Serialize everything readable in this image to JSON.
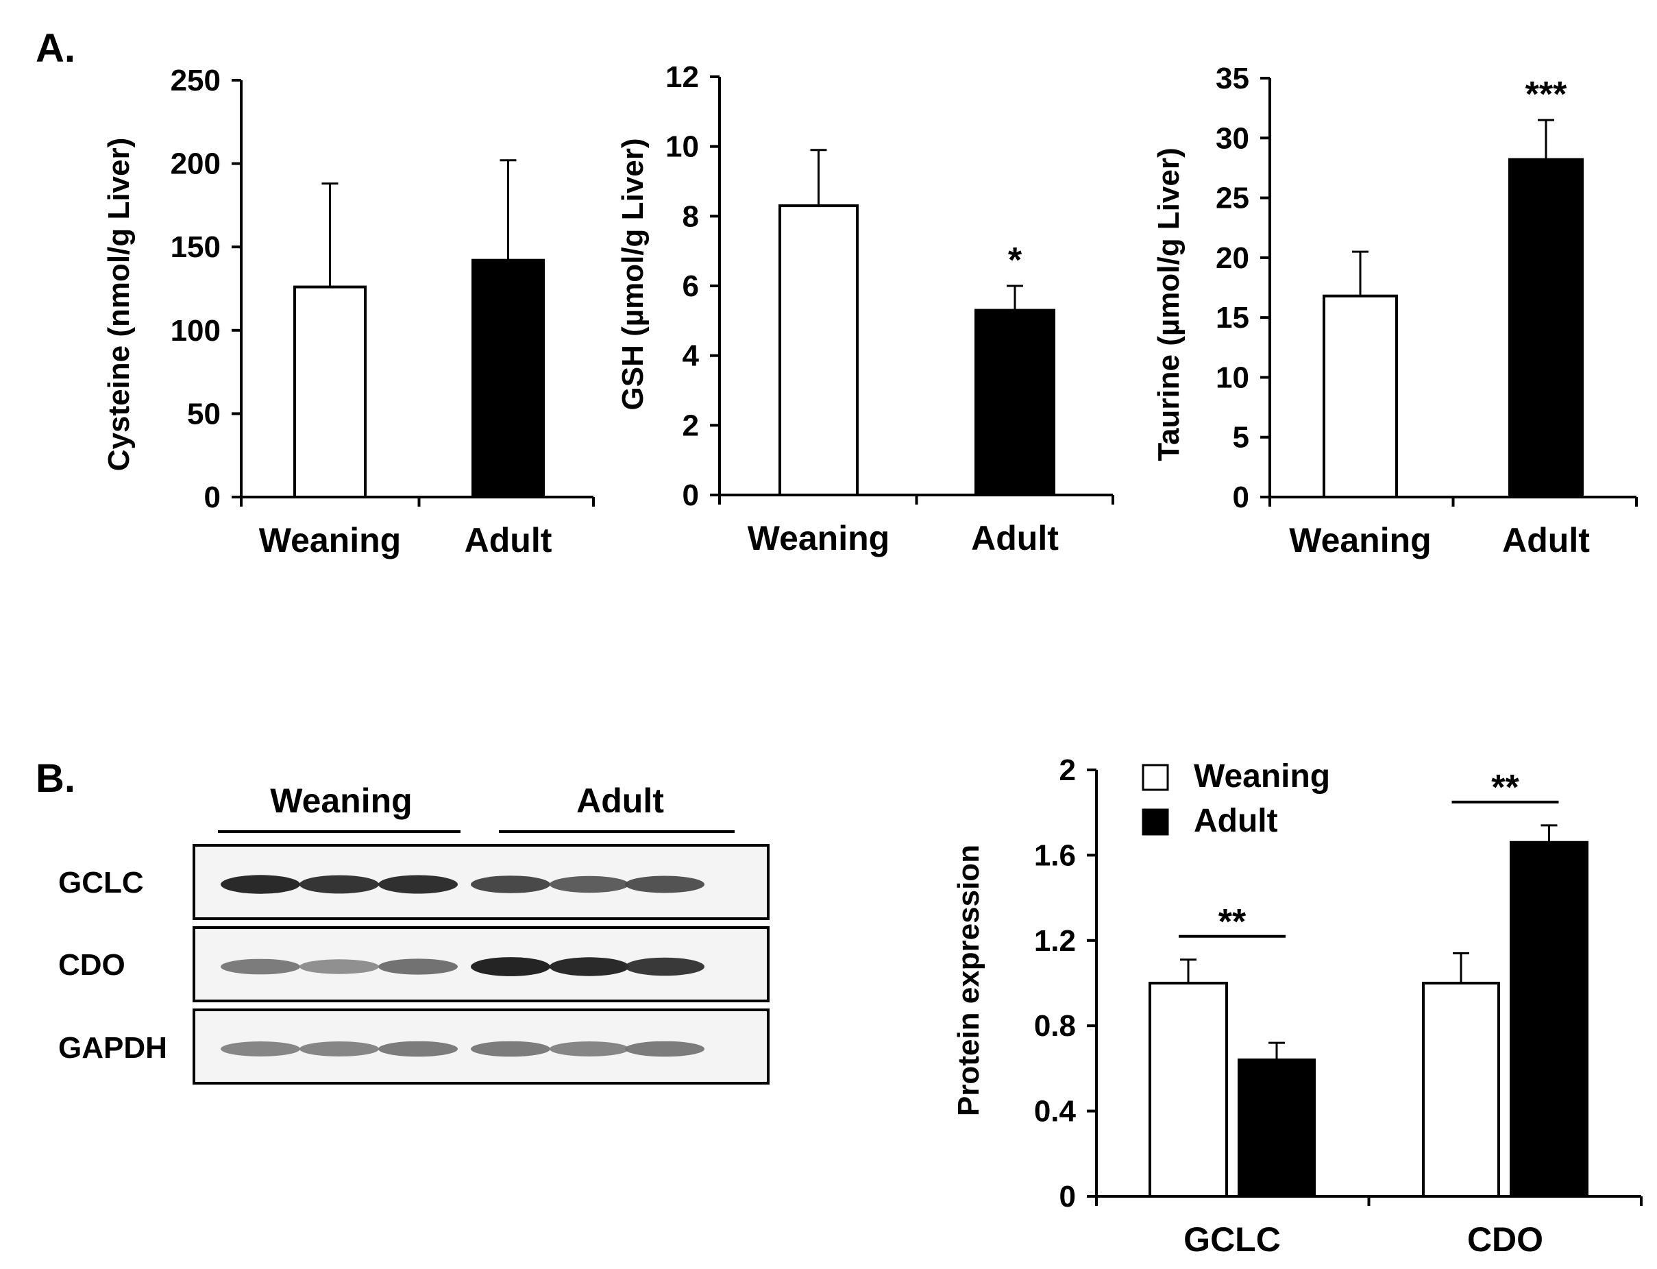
{
  "panels": {
    "a_label": "A.",
    "b_label": "B."
  },
  "chart_data": [
    {
      "id": "cysteine",
      "type": "bar",
      "title": "",
      "categories": [
        "Weaning",
        "Adult"
      ],
      "values": [
        126,
        142
      ],
      "errors": [
        62,
        60
      ],
      "colors": [
        "#ffffff",
        "#000000"
      ],
      "significance": [
        "",
        ""
      ],
      "ylabel": "Cysteine (nmol/g Liver)",
      "xlabel": "",
      "ylim": [
        0,
        250
      ],
      "yticks": [
        0,
        50,
        100,
        150,
        200,
        250
      ],
      "ytick_labels": [
        "0",
        "50",
        "100",
        "150",
        "200",
        "250"
      ],
      "grid": false
    },
    {
      "id": "gsh",
      "type": "bar",
      "title": "",
      "categories": [
        "Weaning",
        "Adult"
      ],
      "values": [
        8.3,
        5.3
      ],
      "errors": [
        1.6,
        0.7
      ],
      "colors": [
        "#ffffff",
        "#000000"
      ],
      "significance": [
        "",
        "*"
      ],
      "ylabel": "GSH (µmol/g Liver)",
      "xlabel": "",
      "ylim": [
        0,
        12
      ],
      "yticks": [
        0,
        2,
        4,
        6,
        8,
        10,
        12
      ],
      "ytick_labels": [
        "0",
        "2",
        "4",
        "6",
        "8",
        "10",
        "12"
      ],
      "grid": false
    },
    {
      "id": "taurine",
      "type": "bar",
      "title": "",
      "categories": [
        "Weaning",
        "Adult"
      ],
      "values": [
        16.8,
        28.2
      ],
      "errors": [
        3.7,
        3.3
      ],
      "colors": [
        "#ffffff",
        "#000000"
      ],
      "significance": [
        "",
        "***"
      ],
      "ylabel": "Taurine (µmol/g Liver)",
      "xlabel": "",
      "ylim": [
        0,
        35
      ],
      "yticks": [
        0,
        5,
        10,
        15,
        20,
        25,
        30,
        35
      ],
      "ytick_labels": [
        "0",
        "5",
        "10",
        "15",
        "20",
        "25",
        "30",
        "35"
      ],
      "grid": false
    },
    {
      "id": "protein",
      "type": "bar",
      "title": "",
      "categories": [
        "GCLC",
        "CDO"
      ],
      "series": [
        {
          "name": "Weaning",
          "values": [
            1.0,
            1.0
          ],
          "errors": [
            0.11,
            0.14
          ],
          "color": "#ffffff"
        },
        {
          "name": "Adult",
          "values": [
            0.64,
            1.66
          ],
          "errors": [
            0.08,
            0.08
          ],
          "color": "#000000"
        }
      ],
      "significance": [
        "**",
        "**"
      ],
      "ylabel": "Protein expression",
      "xlabel": "",
      "ylim": [
        0,
        2
      ],
      "yticks": [
        0,
        0.4,
        0.8,
        1.2,
        1.6,
        2
      ],
      "ytick_labels": [
        "0",
        "0.4",
        "0.8",
        "1.2",
        "1.6",
        "2"
      ],
      "legend": "top-left",
      "grid": false
    }
  ],
  "blot": {
    "groups": [
      "Weaning",
      "Adult"
    ],
    "rows": [
      {
        "label": "GCLC",
        "intensities": [
          0.95,
          0.9,
          0.92,
          0.8,
          0.7,
          0.75
        ]
      },
      {
        "label": "CDO",
        "intensities": [
          0.55,
          0.45,
          0.6,
          0.98,
          0.95,
          0.88
        ]
      },
      {
        "label": "GAPDH",
        "intensities": [
          0.5,
          0.5,
          0.55,
          0.55,
          0.5,
          0.55
        ]
      }
    ]
  }
}
